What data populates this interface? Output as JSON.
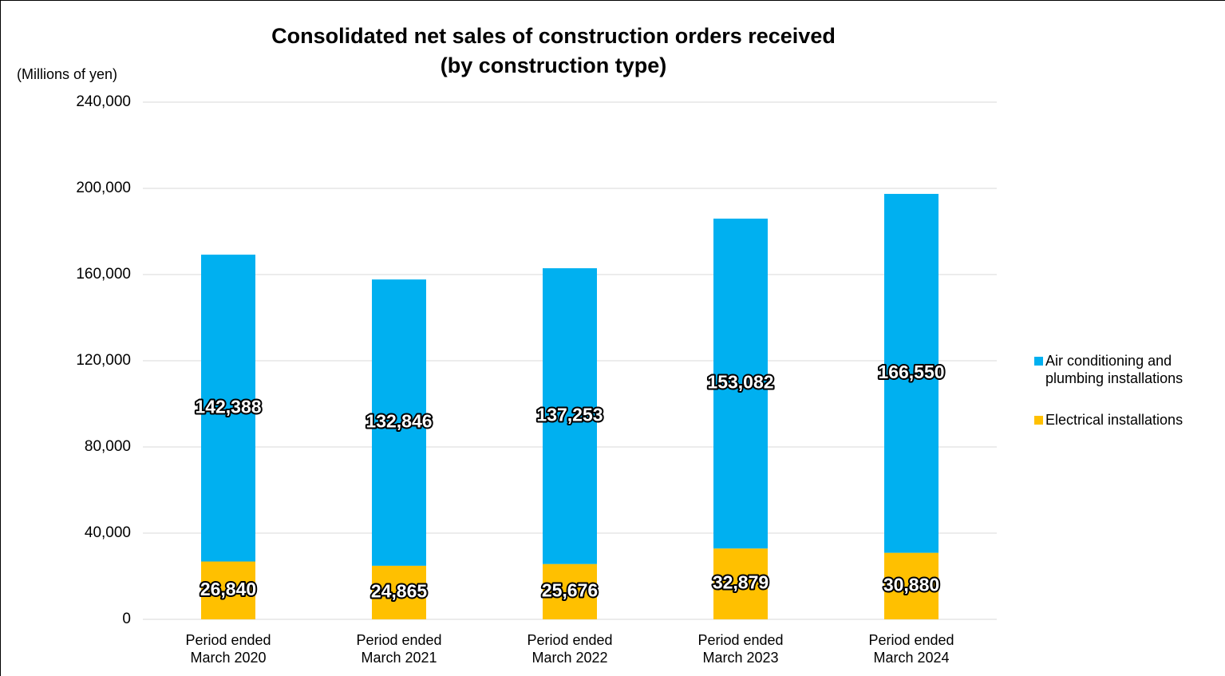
{
  "chart_data": {
    "type": "stacked_bar",
    "title": "Consolidated net sales of construction orders received\n(by construction type)",
    "y_label": "(Millions of yen)",
    "categories": [
      "Period ended\nMarch 2020",
      "Period ended\nMarch 2021",
      "Period ended\nMarch 2022",
      "Period ended\nMarch 2023",
      "Period ended\nMarch 2024"
    ],
    "series": [
      {
        "name": "Electrical installations",
        "color": "#ffc000",
        "values": [
          26840,
          24865,
          25676,
          32879,
          30880
        ],
        "value_labels": [
          "26,840",
          "24,865",
          "25,676",
          "32,879",
          "30,880"
        ]
      },
      {
        "name": "Air conditioning and plumbing installations",
        "color": "#00b0f0",
        "values": [
          142388,
          132846,
          137253,
          153082,
          166550
        ],
        "value_labels": [
          "142,388",
          "132,846",
          "137,253",
          "153,082",
          "166,550"
        ]
      }
    ],
    "ylim": [
      0,
      240000
    ],
    "yticks": [
      {
        "value": 0,
        "label": "0"
      },
      {
        "value": 40000,
        "label": "40,000"
      },
      {
        "value": 80000,
        "label": "80,000"
      },
      {
        "value": 120000,
        "label": "120,000"
      },
      {
        "value": 160000,
        "label": "160,000"
      },
      {
        "value": 200000,
        "label": "200,000"
      },
      {
        "value": 240000,
        "label": "240,000"
      }
    ],
    "grid": true,
    "legend": "right"
  }
}
